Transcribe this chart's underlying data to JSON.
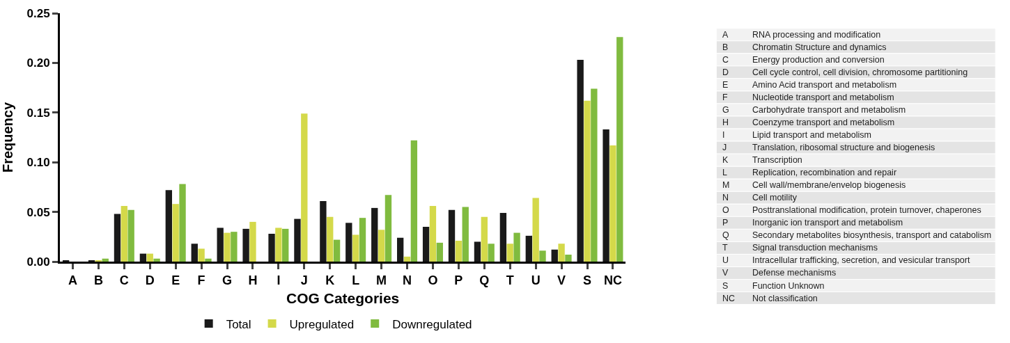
{
  "chart_data": {
    "type": "bar",
    "xlabel": "COG Categories",
    "ylabel": "Frequency",
    "categories": [
      "A",
      "B",
      "C",
      "D",
      "E",
      "F",
      "G",
      "H",
      "I",
      "J",
      "K",
      "L",
      "M",
      "N",
      "O",
      "P",
      "Q",
      "T",
      "U",
      "V",
      "S",
      "NC"
    ],
    "series": [
      {
        "name": "Total",
        "color": "#1a1a1a",
        "values": [
          0.001,
          0.001,
          0.048,
          0.008,
          0.072,
          0.018,
          0.034,
          0.033,
          0.028,
          0.043,
          0.061,
          0.039,
          0.054,
          0.024,
          0.035,
          0.052,
          0.02,
          0.049,
          0.026,
          0.012,
          0.203,
          0.133
        ]
      },
      {
        "name": "Upregulated",
        "color": "#d4d94a",
        "values": [
          0.0,
          0.001,
          0.056,
          0.008,
          0.058,
          0.013,
          0.029,
          0.04,
          0.034,
          0.149,
          0.045,
          0.027,
          0.032,
          0.005,
          0.056,
          0.021,
          0.045,
          0.018,
          0.064,
          0.018,
          0.162,
          0.117
        ]
      },
      {
        "name": "Downregulated",
        "color": "#80bb3f",
        "values": [
          0.0,
          0.003,
          0.052,
          0.003,
          0.078,
          0.003,
          0.03,
          0.0,
          0.033,
          0.0,
          0.022,
          0.044,
          0.067,
          0.122,
          0.019,
          0.055,
          0.018,
          0.029,
          0.011,
          0.007,
          0.174,
          0.226
        ]
      }
    ],
    "ylim": [
      0,
      0.25
    ],
    "yticks": [
      {
        "value": 0,
        "label": "0.00"
      },
      {
        "value": 0.05,
        "label": "0.05"
      },
      {
        "value": 0.1,
        "label": "0.10"
      },
      {
        "value": 0.15,
        "label": "0.15"
      },
      {
        "value": 0.2,
        "label": "0.20"
      },
      {
        "value": 0.25,
        "label": "0.25"
      }
    ],
    "legend": "bottom",
    "annotations": [
      "A",
      "RNA processing and modification",
      "B",
      "Chromatin Structure and dynamics",
      "C",
      "Energy production and conversion",
      "D",
      "Cell cycle control, cell division, chromosome partitioning",
      "E",
      "Amino Acid transport and metabolism",
      "F",
      "Nucleotide transport and metabolism",
      "G",
      "Carbohydrate transport and metabolism",
      "H",
      "Coenzyme transport and metabolism",
      "I",
      "Lipid transport and metabolism",
      "J",
      "Translation, ribosomal structure and biogenesis",
      "K",
      "Transcription",
      "L",
      "Replication, recombination and repair",
      "M",
      "Cell wall/membrane/envelop biogenesis",
      "N",
      "Cell motility",
      "O",
      "Posttranslational modification, protein turnover, chaperones",
      "P",
      "Inorganic ion transport and metabolism",
      "Q",
      "Secondary metabolites biosynthesis, transport and catabolism",
      "T",
      "Signal transduction mechanisms",
      "U",
      "Intracellular trafficking, secretion, and vesicular transport",
      "V",
      "Defense mechanisms",
      "S",
      "Function Unknown",
      "NC",
      "Not classification"
    ]
  }
}
